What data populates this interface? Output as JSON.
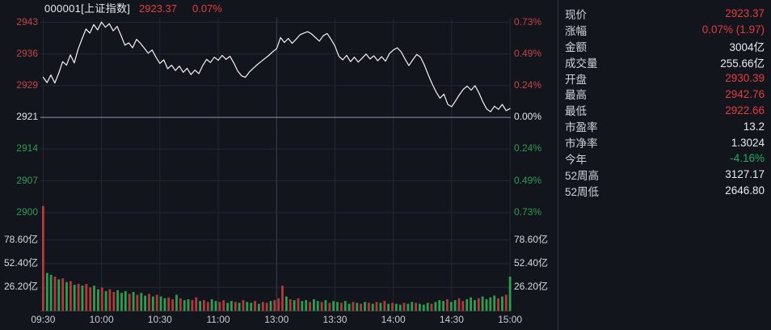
{
  "header": {
    "code_name": "000001[上证指数]",
    "price": "2923.37",
    "change_pct": "0.07%"
  },
  "axes": {
    "left_price": {
      "labels": [
        "2943",
        "2936",
        "2929",
        "2921",
        "2914",
        "2907",
        "2900"
      ],
      "tones": [
        "axup",
        "axup",
        "axup",
        "axwt",
        "axdn",
        "axdn",
        "axdn"
      ]
    },
    "right_pct": {
      "labels": [
        "0.73%",
        "0.49%",
        "0.24%",
        "0.00%",
        "0.24%",
        "0.49%",
        "0.73%"
      ],
      "tones": [
        "axup",
        "axup",
        "axup",
        "axwt",
        "axdn",
        "axdn",
        "axdn"
      ]
    },
    "volume": {
      "labels": [
        "78.60亿",
        "52.40亿",
        "26.20亿"
      ]
    },
    "time": {
      "labels": [
        "09:30",
        "10:00",
        "10:30",
        "11:00",
        "13:00",
        "13:30",
        "14:00",
        "14:30",
        "15:00"
      ]
    }
  },
  "panel": {
    "rows": [
      {
        "label": "现价",
        "value": "2923.37",
        "tone": "up"
      },
      {
        "label": "涨幅",
        "value": "0.07% (1.97)",
        "tone": "up"
      },
      {
        "label": "金额",
        "value": "3004亿",
        "tone": "wt"
      },
      {
        "label": "成交量",
        "value": "255.66亿",
        "tone": "wt"
      },
      {
        "label": "开盘",
        "value": "2930.39",
        "tone": "up"
      },
      {
        "label": "最高",
        "value": "2942.76",
        "tone": "up"
      },
      {
        "label": "最低",
        "value": "2922.66",
        "tone": "up"
      },
      {
        "label": "市盈率",
        "value": "13.2",
        "tone": "wt"
      },
      {
        "label": "市净率",
        "value": "1.3024",
        "tone": "wt"
      },
      {
        "label": "今年",
        "value": "-4.16%",
        "tone": "dn"
      },
      {
        "label": "52周高",
        "value": "3127.17",
        "tone": "wt"
      },
      {
        "label": "52周低",
        "value": "2646.80",
        "tone": "wt"
      }
    ]
  },
  "colors": {
    "up": "#e43b41",
    "down": "#22ad63",
    "line": "#f1f3f6",
    "vol_up": "#b23a3e",
    "vol_down": "#2b9e52",
    "grid": "#242834",
    "mid_line": "#8d95a3",
    "session_divider": "#3a4150",
    "background": "#13151c"
  },
  "chart_data": {
    "type": "line+bar",
    "title": "000001[上证指数]",
    "legend": "white line = price, red/green bars = volume per interval",
    "prev_close": 2921.4,
    "open": 2930.39,
    "high": 2942.76,
    "low": 2922.66,
    "last": 2923.37,
    "price_axis_range": [
      2900.07,
      2942.73
    ],
    "pct_axis_range": [
      "-0.73%",
      "+0.73%"
    ],
    "x_session_labels": [
      "09:30",
      "10:00",
      "10:30",
      "11:00",
      "13:00",
      "13:30",
      "14:00",
      "14:30",
      "15:00"
    ],
    "sample_interval_min": 2,
    "price_line": [
      2930.4,
      2929.2,
      2930.9,
      2929.1,
      2931.3,
      2933.9,
      2933.1,
      2935.4,
      2933.6,
      2936.7,
      2939.0,
      2941.2,
      2940.3,
      2942.2,
      2941.0,
      2942.76,
      2941.6,
      2942.4,
      2940.8,
      2941.8,
      2939.8,
      2937.6,
      2938.1,
      2937.0,
      2938.9,
      2938.0,
      2936.9,
      2935.8,
      2936.5,
      2934.9,
      2933.5,
      2934.3,
      2932.3,
      2933.1,
      2931.9,
      2932.9,
      2931.5,
      2932.4,
      2931.0,
      2932.0,
      2931.2,
      2933.0,
      2934.4,
      2933.7,
      2934.9,
      2934.2,
      2935.3,
      2934.4,
      2935.1,
      2933.6,
      2931.8,
      2930.7,
      2930.4,
      2931.6,
      2932.4,
      2933.2,
      2933.9,
      2934.6,
      2935.3,
      2936.1,
      2936.8,
      2939.3,
      2938.2,
      2939.1,
      2938.0,
      2938.9,
      2939.9,
      2940.3,
      2940.6,
      2940.1,
      2939.3,
      2938.5,
      2939.7,
      2940.2,
      2938.9,
      2937.4,
      2935.1,
      2934.3,
      2935.3,
      2933.9,
      2934.9,
      2933.8,
      2934.7,
      2935.6,
      2934.5,
      2935.2,
      2934.1,
      2935.0,
      2934.0,
      2935.7,
      2936.5,
      2937.0,
      2936.1,
      2934.5,
      2933.0,
      2934.3,
      2935.5,
      2934.9,
      2933.1,
      2930.9,
      2928.9,
      2927.1,
      2925.7,
      2926.6,
      2924.3,
      2923.8,
      2925.1,
      2926.5,
      2927.7,
      2928.4,
      2927.5,
      2928.5,
      2926.9,
      2924.9,
      2923.3,
      2922.66,
      2923.9,
      2923.2,
      2924.3,
      2922.9,
      2923.37
    ],
    "volume_unit": "亿",
    "volume_axis_ticks": [
      26.2,
      52.4,
      78.6
    ],
    "volume_bars": [
      116,
      42,
      40,
      38,
      35,
      36,
      32,
      33,
      29,
      30,
      28,
      30,
      26,
      28,
      24,
      26,
      22,
      24,
      21,
      23,
      20,
      22,
      19,
      21,
      18,
      20,
      17,
      19,
      16,
      18,
      16,
      14,
      15,
      13,
      18,
      14,
      12,
      13,
      12,
      15,
      11,
      12,
      10,
      13,
      11,
      10,
      12,
      9,
      11,
      10,
      9,
      12,
      10,
      9,
      11,
      8,
      10,
      9,
      11,
      12,
      14,
      28,
      16,
      13,
      12,
      14,
      11,
      12,
      10,
      13,
      11,
      10,
      12,
      9,
      11,
      10,
      9,
      11,
      8,
      10,
      9,
      8,
      10,
      9,
      8,
      10,
      9,
      11,
      8,
      9,
      8,
      7,
      9,
      8,
      10,
      9,
      8,
      7,
      9,
      8,
      10,
      12,
      11,
      13,
      10,
      12,
      14,
      11,
      13,
      15,
      12,
      14,
      16,
      13,
      15,
      17,
      14,
      16,
      18,
      38
    ],
    "volume_dirs": "rggrgrgrgrgrrggrgrrgggrgrggrgrggrrgrggrrgrrggrrggrgrggrgrrgrrrgrgrggrggrgrggrggrgrgrgrgrgrggrggrgggrgggrggrrgggrggggrgrg"
  }
}
